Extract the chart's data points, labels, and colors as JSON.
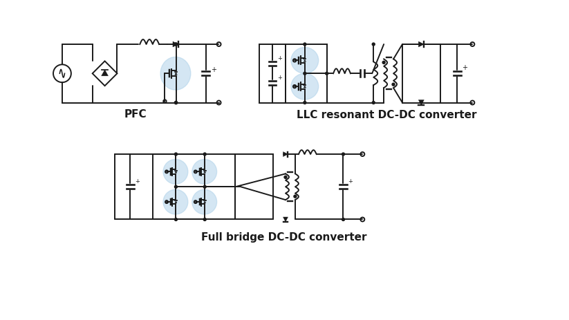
{
  "bg_color": "#ffffff",
  "line_color": "#1a1a1a",
  "highlight_color": "#aacfe8",
  "highlight_alpha": 0.5,
  "title_pfc": "PFC",
  "title_llc": "LLC resonant DC-DC converter",
  "title_fb": "Full bridge DC-DC converter",
  "title_fontsize": 11,
  "title_fontweight": "bold",
  "lw": 1.4
}
